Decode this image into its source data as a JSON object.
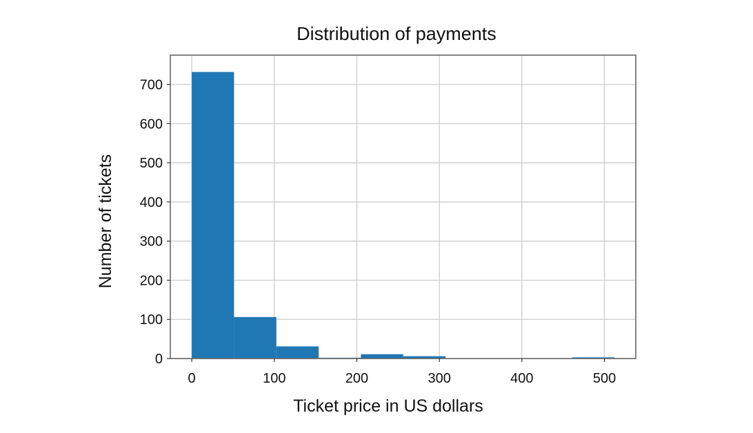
{
  "chart_data": {
    "type": "bar",
    "title": "Distribution of payments",
    "xlabel": "Ticket price in US dollars",
    "ylabel": "Number of tickets",
    "xlim": [
      -26,
      538
    ],
    "ylim": [
      0,
      775
    ],
    "xticks": [
      0,
      100,
      200,
      300,
      400,
      500
    ],
    "yticks": [
      0,
      100,
      200,
      300,
      400,
      500,
      600,
      700
    ],
    "grid": true,
    "bar_color": "#1f77b4",
    "bins": [
      {
        "x0": 0,
        "x1": 51.2,
        "value": 732
      },
      {
        "x0": 51.2,
        "x1": 102.5,
        "value": 106
      },
      {
        "x0": 102.5,
        "x1": 153.7,
        "value": 31
      },
      {
        "x0": 153.7,
        "x1": 204.9,
        "value": 2
      },
      {
        "x0": 204.9,
        "x1": 256.2,
        "value": 11
      },
      {
        "x0": 256.2,
        "x1": 307.4,
        "value": 6
      },
      {
        "x0": 307.4,
        "x1": 358.6,
        "value": 0
      },
      {
        "x0": 358.6,
        "x1": 409.9,
        "value": 0
      },
      {
        "x0": 409.9,
        "x1": 461.1,
        "value": 0
      },
      {
        "x0": 461.1,
        "x1": 512.3,
        "value": 3
      }
    ]
  }
}
